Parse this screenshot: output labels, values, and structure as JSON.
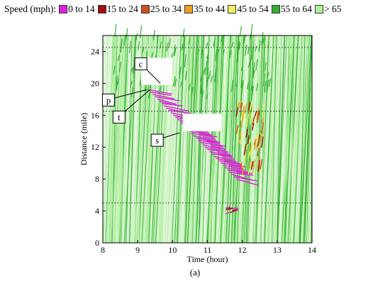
{
  "legend": {
    "title": "Speed (mph):",
    "colors": [
      "#e020e0",
      "#a01010",
      "#d05020",
      "#e8a020",
      "#f0f060",
      "#30b030",
      "#b0f0a0"
    ],
    "items": [
      {
        "label": "0 to 14",
        "color": "#e020e0"
      },
      {
        "label": "15 to 24",
        "color": "#a01010"
      },
      {
        "label": "25 to 34",
        "color": "#d05020"
      },
      {
        "label": "35 to 44",
        "color": "#e8a020"
      },
      {
        "label": "45 to 54",
        "color": "#f0f060"
      },
      {
        "label": "55 to 64",
        "color": "#30b030"
      },
      {
        "label": "> 65",
        "color": "#b0f0a0"
      }
    ]
  },
  "caption": "(a)",
  "chart_data": {
    "type": "heatmap",
    "xlabel": "Time (hour)",
    "ylabel": "Distance (mile)",
    "xlim": [
      8,
      14
    ],
    "ylim": [
      0,
      26
    ],
    "xticks": [
      8,
      9,
      10,
      11,
      12,
      13,
      14
    ],
    "yticks": [
      0,
      4,
      8,
      12,
      16,
      20,
      24
    ],
    "reference_lines_mile": [
      5,
      16.5,
      24.5
    ],
    "annotations": [
      {
        "label": "c",
        "time": 9.65,
        "distance": 20
      },
      {
        "label": "p",
        "time": 9.25,
        "distance": 19.2
      },
      {
        "label": "t",
        "time": 9.35,
        "distance": 19.2
      },
      {
        "label": "s",
        "time": 10.2,
        "distance": 13.8
      }
    ],
    "congestion_regions": [
      {
        "class": "0 to 14",
        "start": [
          9.25,
          19.0
        ],
        "end": [
          12.2,
          7.0
        ]
      },
      {
        "class": "0 to 14",
        "start": [
          11.4,
          4.0
        ],
        "end": [
          11.8,
          4.0
        ]
      },
      {
        "class": "25 to 34",
        "start": [
          11.8,
          17.0
        ],
        "end": [
          12.6,
          9.0
        ]
      }
    ]
  }
}
